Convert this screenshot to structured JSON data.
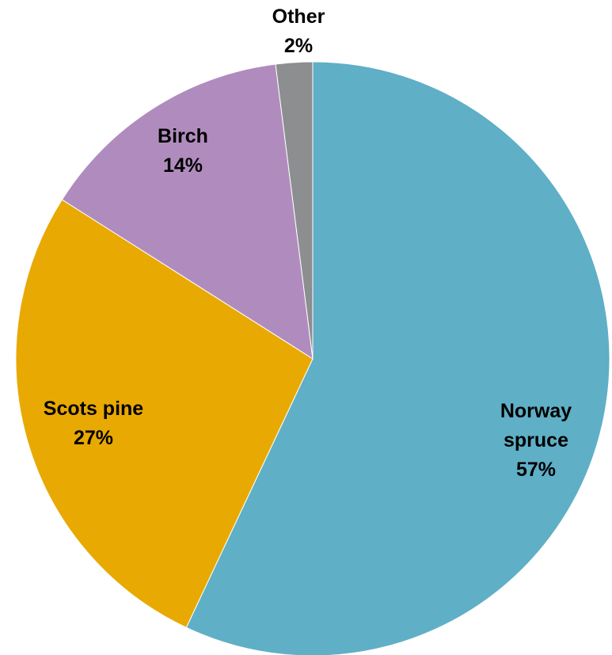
{
  "chart_data": {
    "type": "pie",
    "title": "",
    "slices": [
      {
        "name": "Norway spruce",
        "name_lines": [
          "Norway",
          "spruce"
        ],
        "value": 57,
        "value_label": "57%",
        "color": "#5FAFC6"
      },
      {
        "name": "Scots pine",
        "name_lines": [
          "Scots pine"
        ],
        "value": 27,
        "value_label": "27%",
        "color": "#E8A903"
      },
      {
        "name": "Birch",
        "name_lines": [
          "Birch"
        ],
        "value": 14,
        "value_label": "14%",
        "color": "#B08CBE"
      },
      {
        "name": "Other",
        "name_lines": [
          "Other"
        ],
        "value": 2,
        "value_label": "2%",
        "color": "#8C8E90"
      }
    ],
    "start_angle": "12 o'clock",
    "direction": "clockwise",
    "legend": "none",
    "labels": "category name and percent on each slice"
  }
}
